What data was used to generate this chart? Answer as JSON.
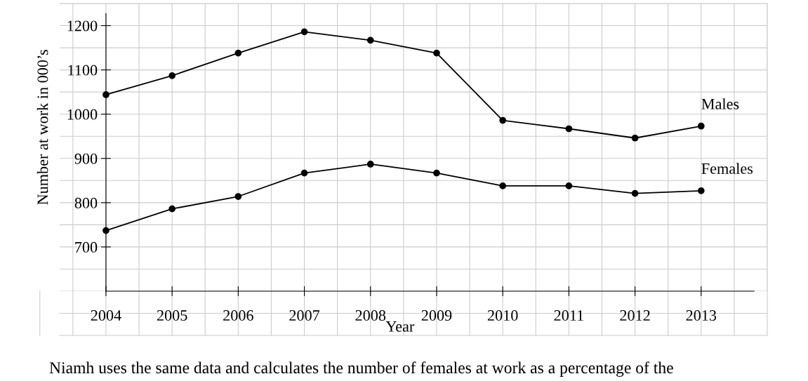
{
  "chart_data": {
    "type": "line",
    "xlabel": "Year",
    "ylabel": "Number at work in 000’s",
    "x": [
      2004,
      2005,
      2006,
      2007,
      2008,
      2009,
      2010,
      2011,
      2012,
      2013
    ],
    "series": [
      {
        "name": "Males",
        "color": "#000000",
        "values": [
          1044,
          1087,
          1138,
          1186,
          1167,
          1138,
          986,
          967,
          946,
          973
        ]
      },
      {
        "name": "Females",
        "color": "#000000",
        "values": [
          737,
          786,
          814,
          867,
          887,
          867,
          838,
          838,
          821,
          827
        ]
      }
    ],
    "xlim": [
      2003.3,
      2014
    ],
    "ylim": [
      600,
      1250
    ],
    "xticks": [
      2004,
      2005,
      2006,
      2007,
      2008,
      2009,
      2010,
      2011,
      2012,
      2013
    ],
    "yticks": [
      700,
      800,
      900,
      1000,
      1100,
      1200
    ],
    "grid": true,
    "marker": "circle",
    "line_style": "solid",
    "legend": false,
    "annotations": [
      "Niamh uses the same data and calculates the number of females at work as a percentage of the"
    ]
  }
}
